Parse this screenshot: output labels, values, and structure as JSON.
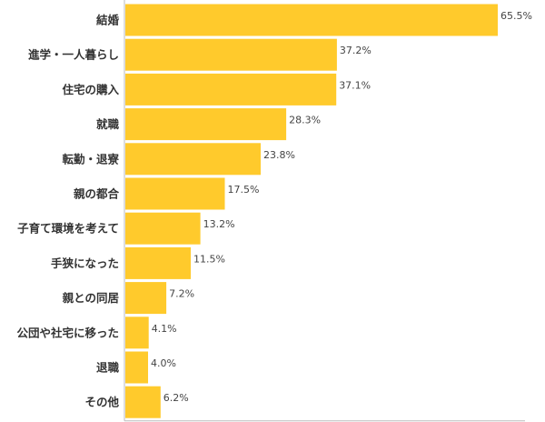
{
  "chart_data": {
    "type": "bar",
    "orientation": "horizontal",
    "categories": [
      "結婚",
      "進学・一人暮らし",
      "住宅の購入",
      "就職",
      "転勤・退寮",
      "親の都合",
      "子育て環境を考えて",
      "手狭になった",
      "親との同居",
      "公団や社宅に移った",
      "退職",
      "その他"
    ],
    "values": [
      65.5,
      37.2,
      37.1,
      28.3,
      23.8,
      17.5,
      13.2,
      11.5,
      7.2,
      4.1,
      4.0,
      6.2
    ],
    "value_labels": [
      "65.5%",
      "37.2%",
      "37.1%",
      "28.3%",
      "23.8%",
      "17.5%",
      "13.2%",
      "11.5%",
      "7.2%",
      "4.1%",
      "4.0%",
      "6.2%"
    ],
    "xlim": [
      0,
      65.5
    ],
    "title": "",
    "xlabel": "",
    "ylabel": "",
    "grid": false,
    "bar_color": "#FFCA2C",
    "axis_color": "#BBBBBB",
    "label_color": "#333333",
    "value_color": "#444444"
  }
}
